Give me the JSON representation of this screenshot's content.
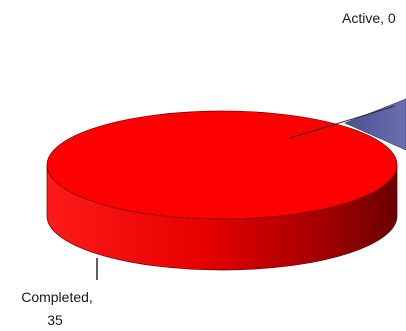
{
  "chart_data": {
    "type": "pie",
    "style": "3d-exploded",
    "slices": [
      {
        "name": "Active",
        "value": 0,
        "label": "Active, 0",
        "color": "#ff0000"
      },
      {
        "name": "Completed",
        "value": 35,
        "label_name": "Completed,",
        "label_value": "35",
        "color": "#ff0000"
      }
    ],
    "partial_slice_color": "#5a5f9e",
    "legend": "none",
    "grid": false
  }
}
